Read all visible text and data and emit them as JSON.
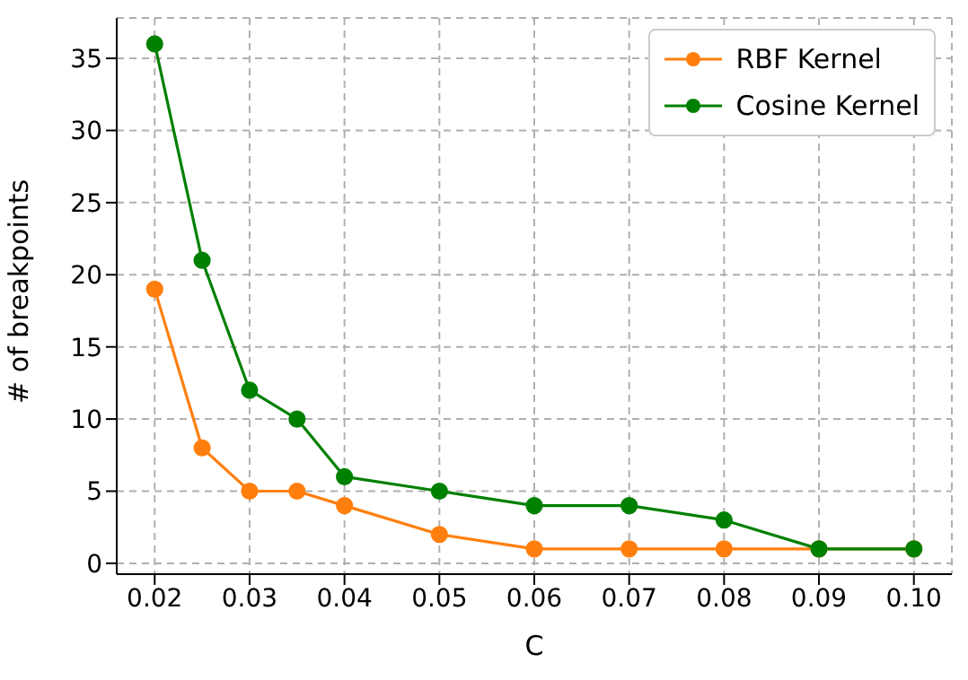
{
  "chart_data": {
    "type": "line",
    "xlabel": "C",
    "ylabel": "# of breakpoints",
    "x": [
      0.02,
      0.025,
      0.03,
      0.035,
      0.04,
      0.05,
      0.06,
      0.07,
      0.08,
      0.09,
      0.1
    ],
    "series": [
      {
        "name": "RBF Kernel",
        "color": "#ff7f0e",
        "values": [
          19,
          8,
          5,
          5,
          4,
          2,
          1,
          1,
          1,
          1,
          1
        ]
      },
      {
        "name": "Cosine Kernel",
        "color": "#008000",
        "values": [
          36,
          21,
          12,
          10,
          6,
          5,
          4,
          4,
          3,
          1,
          1
        ]
      }
    ],
    "xlim": [
      0.016,
      0.104
    ],
    "xticks": [
      0.02,
      0.03,
      0.04,
      0.05,
      0.06,
      0.07,
      0.08,
      0.09,
      {
        "value": 0.1,
        "label": "0.10"
      }
    ],
    "ylim": [
      -0.75,
      37.8
    ],
    "yticks": [
      0,
      5,
      10,
      15,
      20,
      25,
      30,
      35
    ],
    "grid": true,
    "legend": "top right",
    "marker": "circle",
    "line_style": "solid"
  }
}
